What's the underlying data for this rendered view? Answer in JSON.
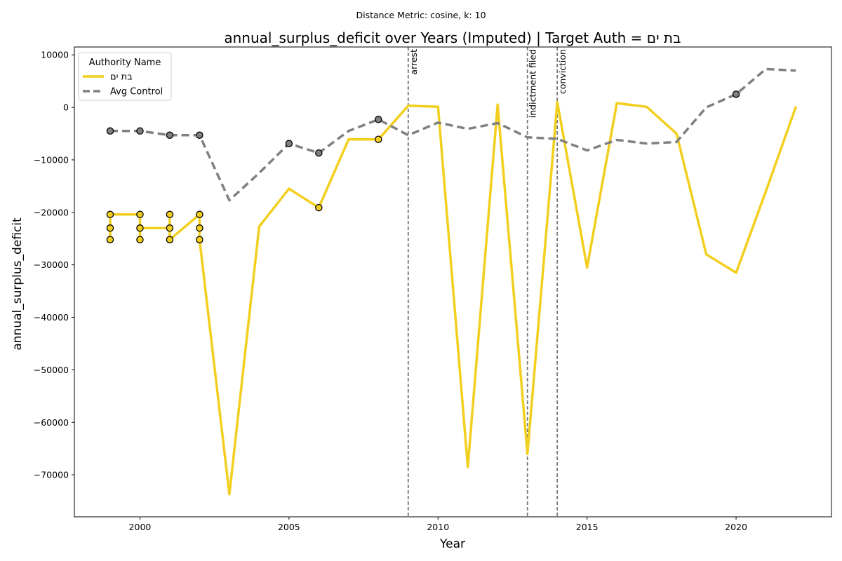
{
  "chart_data": {
    "type": "line",
    "suptitle": "Distance Metric: cosine, k: 10",
    "title": "annual_surplus_deficit over Years (Imputed) | Target Auth = בת ים",
    "xlabel": "Year",
    "ylabel": "annual_surplus_deficit",
    "xlim": [
      1997.8,
      2023.2
    ],
    "ylim": [
      -78000,
      11500
    ],
    "xticks": [
      2000,
      2005,
      2010,
      2015,
      2020
    ],
    "yticks": [
      10000,
      0,
      -10000,
      -20000,
      -30000,
      -40000,
      -50000,
      -60000,
      -70000
    ],
    "ytick_labels": [
      "10000",
      "0",
      "−10000",
      "−20000",
      "−30000",
      "−40000",
      "−50000",
      "−60000",
      "−70000"
    ],
    "grid": false,
    "legend": {
      "title": "Authority Name",
      "position": "upper-left"
    },
    "series": [
      {
        "name": "בת ים",
        "color": "#f2cf1f",
        "style": "solid",
        "points": [
          [
            1999,
            -25200
          ],
          [
            1999,
            -23000
          ],
          [
            1999,
            -20400
          ],
          [
            2000,
            -20400
          ],
          [
            2000,
            -23000
          ],
          [
            2000,
            -25200
          ],
          [
            2000,
            -23000
          ],
          [
            2001,
            -23000
          ],
          [
            2001,
            -20400
          ],
          [
            2001,
            -25200
          ],
          [
            2002,
            -20400
          ],
          [
            2002,
            -23000
          ],
          [
            2002,
            -25200
          ],
          [
            2003,
            -73700
          ],
          [
            2004,
            -22700
          ],
          [
            2005,
            -15500
          ],
          [
            2006,
            -19100
          ],
          [
            2007,
            -6100
          ],
          [
            2008,
            -6100
          ],
          [
            2009,
            300
          ],
          [
            2010,
            100
          ],
          [
            2011,
            -68500
          ],
          [
            2012,
            500
          ],
          [
            2013,
            -66000
          ],
          [
            2014,
            1000
          ],
          [
            2015,
            -30500
          ],
          [
            2016,
            800
          ],
          [
            2017,
            100
          ],
          [
            2018,
            -5000
          ],
          [
            2019,
            -28000
          ],
          [
            2020,
            -31500
          ],
          [
            2021,
            -16000
          ],
          [
            2022,
            0
          ]
        ],
        "imputed_markers": [
          [
            1999,
            -20400
          ],
          [
            1999,
            -23000
          ],
          [
            1999,
            -25200
          ],
          [
            2000,
            -20400
          ],
          [
            2000,
            -23000
          ],
          [
            2000,
            -25200
          ],
          [
            2001,
            -20400
          ],
          [
            2001,
            -23000
          ],
          [
            2001,
            -25200
          ],
          [
            2002,
            -20400
          ],
          [
            2002,
            -23000
          ],
          [
            2002,
            -25200
          ],
          [
            2006,
            -19100
          ],
          [
            2008,
            -6100
          ]
        ]
      },
      {
        "name": "Avg Control",
        "color": "#808080",
        "style": "dashed",
        "points": [
          [
            1999,
            -4500
          ],
          [
            2000,
            -4500
          ],
          [
            2001,
            -5300
          ],
          [
            2002,
            -5300
          ],
          [
            2003,
            -17700
          ],
          [
            2004,
            -12500
          ],
          [
            2005,
            -6900
          ],
          [
            2006,
            -8700
          ],
          [
            2007,
            -4500
          ],
          [
            2008,
            -2300
          ],
          [
            2009,
            -5300
          ],
          [
            2010,
            -2900
          ],
          [
            2011,
            -4100
          ],
          [
            2012,
            -3000
          ],
          [
            2013,
            -5700
          ],
          [
            2014,
            -6000
          ],
          [
            2015,
            -8200
          ],
          [
            2016,
            -6200
          ],
          [
            2017,
            -6900
          ],
          [
            2018,
            -6600
          ],
          [
            2019,
            0
          ],
          [
            2020,
            2500
          ],
          [
            2021,
            7300
          ],
          [
            2022,
            7000
          ]
        ],
        "imputed_markers": [
          [
            1999,
            -4500
          ],
          [
            2000,
            -4500
          ],
          [
            2001,
            -5300
          ],
          [
            2002,
            -5300
          ],
          [
            2005,
            -6900
          ],
          [
            2006,
            -8700
          ],
          [
            2008,
            -2300
          ],
          [
            2020,
            2500
          ]
        ]
      }
    ],
    "events": [
      {
        "year": 2009,
        "label": "arrest"
      },
      {
        "year": 2013,
        "label": "indictment filed"
      },
      {
        "year": 2014,
        "label": "conviction"
      }
    ]
  }
}
